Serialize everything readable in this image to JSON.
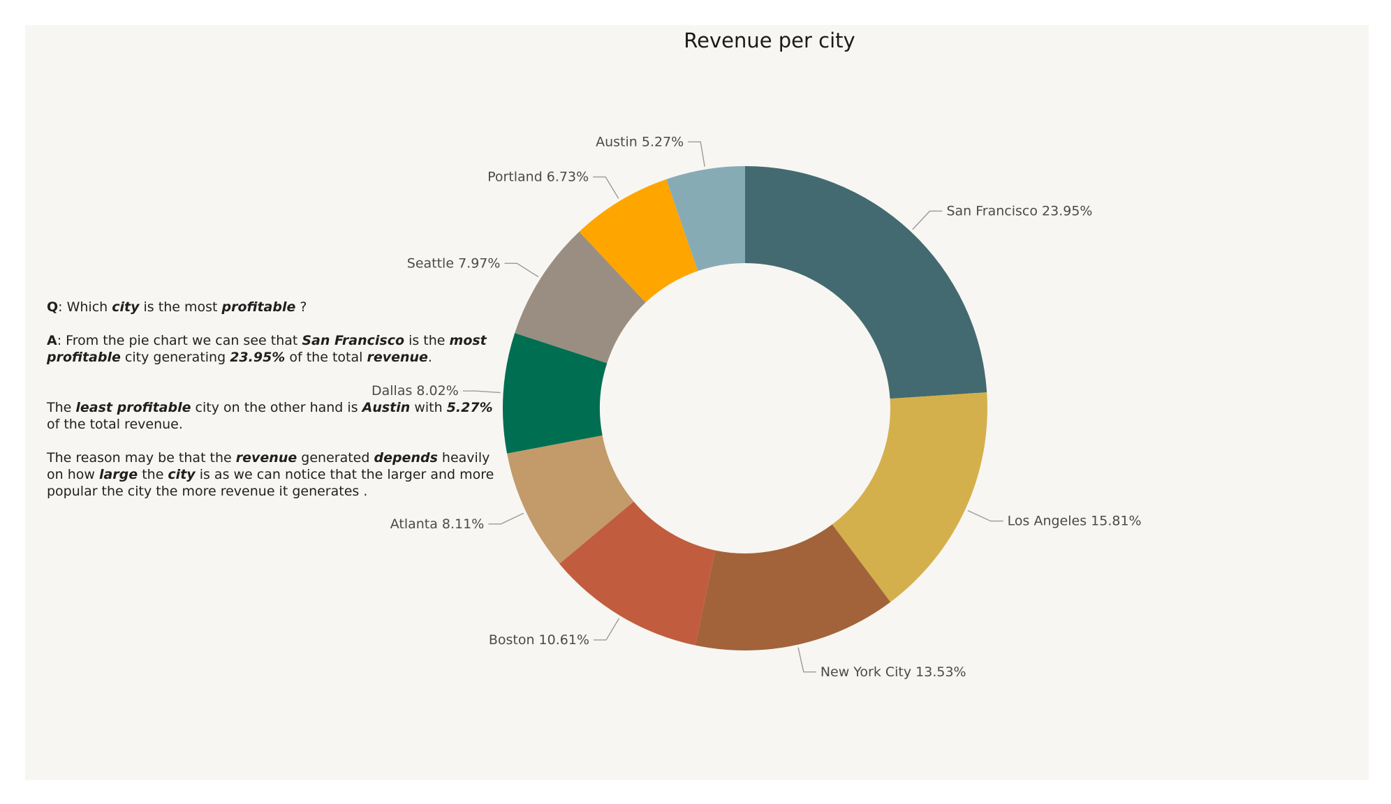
{
  "qa": {
    "q_label": "Q",
    "q_1": ": Which ",
    "q_2": "city",
    "q_3": " is the most ",
    "q_4": "profitable",
    "q_5": " ?",
    "a_label": "A",
    "a_1": ": From the pie chart we can see that ",
    "a_2": "San Francisco",
    "a_3": " is the ",
    "a_4": "most",
    "a_5": "profitable",
    "a_6": " city generating ",
    "a_7": "23.95%",
    "a_8": " of the total ",
    "a_9": "revenue",
    "a_10": ".",
    "p2_1": "The ",
    "p2_2": "least profitable",
    "p2_3": " city on the other hand is ",
    "p2_4": "Austin",
    "p2_5": " with ",
    "p2_6": "5.27%",
    "p2_7": "of the total revenue.",
    "p3_1": "The reason may be that the ",
    "p3_2": "revenue",
    "p3_3": " generated ",
    "p3_4": "depends",
    "p3_5": " heavily",
    "p3_6": "on how ",
    "p3_7": "large",
    "p3_8": " the ",
    "p3_9": "city",
    "p3_10": " is as we can notice that the larger and more",
    "p3_11": "popular the city the more revenue it generates ."
  },
  "chart_data": {
    "type": "pie",
    "donut": true,
    "title": "Revenue per city",
    "start": "top, clockwise",
    "slices": [
      {
        "label": "San Francisco",
        "value": 23.95,
        "color": "#436a70"
      },
      {
        "label": "Los Angeles",
        "value": 15.81,
        "color": "#d4b04c"
      },
      {
        "label": "New York City",
        "value": 13.53,
        "color": "#a2633a"
      },
      {
        "label": "Boston",
        "value": 10.61,
        "color": "#c25c3f"
      },
      {
        "label": "Atlanta",
        "value": 8.11,
        "color": "#c39a6a"
      },
      {
        "label": "Dallas",
        "value": 8.02,
        "color": "#006e51"
      },
      {
        "label": "Seattle",
        "value": 7.97,
        "color": "#9a8e82"
      },
      {
        "label": "Portland",
        "value": 6.73,
        "color": "#ffa500"
      },
      {
        "label": "Austin",
        "value": 5.27,
        "color": "#87abb4"
      }
    ],
    "label_format": "{label} {value}%"
  }
}
